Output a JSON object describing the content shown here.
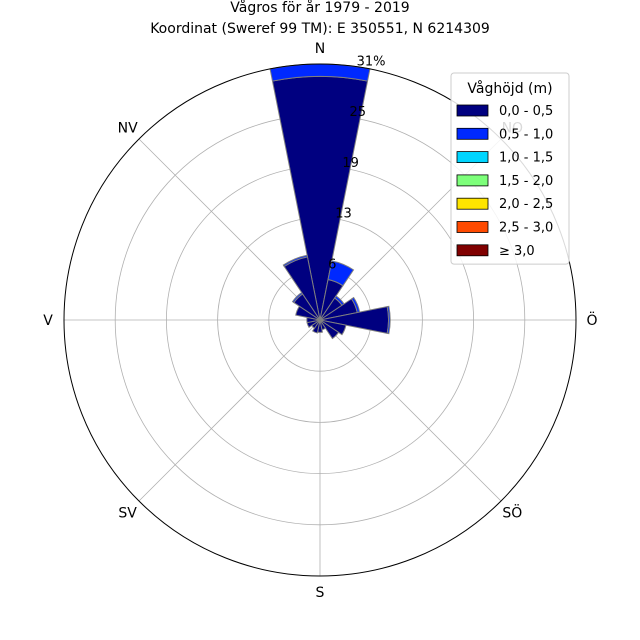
{
  "chart_data": {
    "type": "polar-stacked-bar",
    "title_line1": "Vågros för år 1979 - 2019",
    "title_line2": "Koordinat (Sweref 99 TM): E 350551, N 6214309",
    "directions": [
      "N",
      "NO",
      "Ö",
      "SÖ",
      "S",
      "SV",
      "V",
      "NV"
    ],
    "radial_ticks": [
      "6",
      "13",
      "19",
      "25",
      "31%"
    ],
    "radial_tick_values": [
      6.2,
      12.4,
      18.6,
      24.8,
      31
    ],
    "rlim": [
      0,
      31
    ],
    "grid": true,
    "legend_title": "Våghöjd (m)",
    "legend_position": "top-right",
    "series": [
      {
        "name": "0,0 - 0,5",
        "color": "#000080"
      },
      {
        "name": "0,5 - 1,0",
        "color": "#0029ff"
      },
      {
        "name": "1,0 - 1,5",
        "color": "#00d5ff"
      },
      {
        "name": "1,5 - 2,0",
        "color": "#7dff7a"
      },
      {
        "name": "2,0 - 2,5",
        "color": "#ffe500"
      },
      {
        "name": "2,5 - 3,0",
        "color": "#ff4a00"
      },
      {
        "name": "≥ 3,0",
        "color": "#800000"
      }
    ],
    "bins": [
      {
        "dir_deg": 0,
        "values": [
          29.5,
          1.5
        ]
      },
      {
        "dir_deg": 22.5,
        "values": [
          5.0,
          2.3
        ]
      },
      {
        "dir_deg": 45,
        "values": [
          3.2,
          0.3
        ]
      },
      {
        "dir_deg": 67.5,
        "values": [
          4.6,
          0.3
        ]
      },
      {
        "dir_deg": 90,
        "values": [
          8.3,
          0.2
        ]
      },
      {
        "dir_deg": 112.5,
        "values": [
          3.2
        ]
      },
      {
        "dir_deg": 135,
        "values": [
          2.7
        ]
      },
      {
        "dir_deg": 157.5,
        "values": [
          1.2
        ]
      },
      {
        "dir_deg": 180,
        "values": [
          1.5
        ]
      },
      {
        "dir_deg": 202.5,
        "values": [
          1.6
        ]
      },
      {
        "dir_deg": 225,
        "values": [
          1.2
        ]
      },
      {
        "dir_deg": 247.5,
        "values": [
          1.6
        ]
      },
      {
        "dir_deg": 270,
        "values": [
          1.6
        ]
      },
      {
        "dir_deg": 292.5,
        "values": [
          3.0
        ]
      },
      {
        "dir_deg": 315,
        "values": [
          3.8,
          0.2
        ]
      },
      {
        "dir_deg": 337.5,
        "values": [
          7.8,
          0.2
        ]
      }
    ],
    "bar_width_deg": 22.5
  }
}
